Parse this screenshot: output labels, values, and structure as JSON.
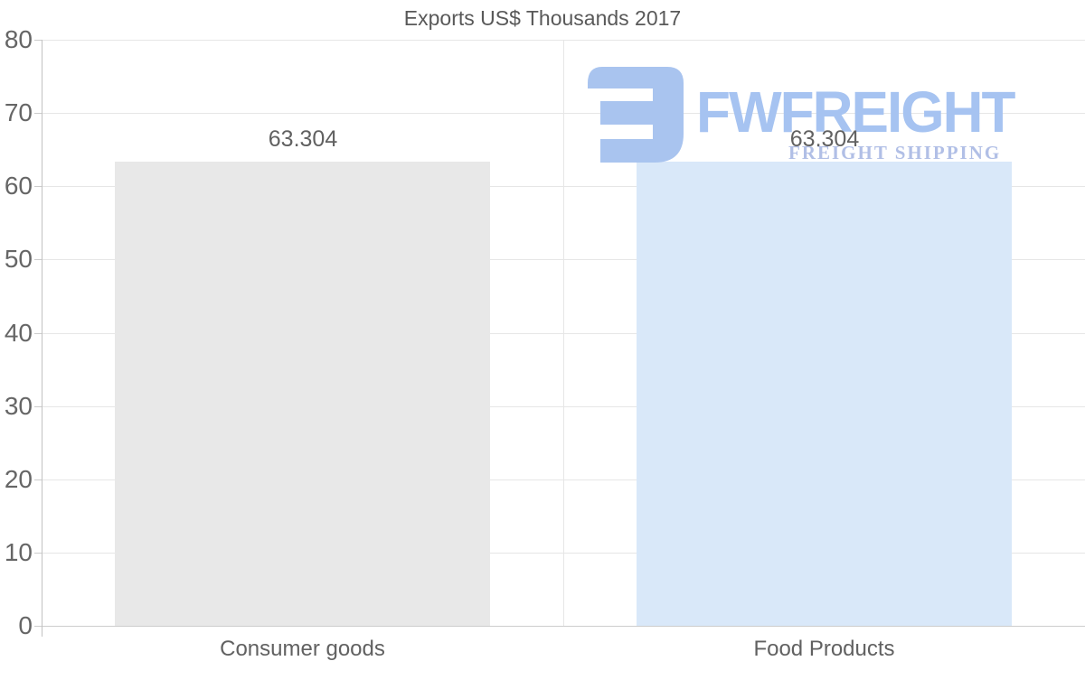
{
  "chart_data": {
    "type": "bar",
    "title": "Exports US$ Thousands 2017",
    "categories": [
      "Consumer goods",
      "Food Products"
    ],
    "values": [
      63.304,
      63.304
    ],
    "value_labels": [
      "63.304",
      "63.304"
    ],
    "ylim": [
      0,
      80
    ],
    "yticks": [
      0,
      10,
      20,
      30,
      40,
      50,
      60,
      70,
      80
    ],
    "grid": "horizontal gridlines on, one vertical category-divider gridline",
    "legend": "none",
    "xlabel": "",
    "ylabel": "",
    "bar_colors": [
      "#e8e8e8",
      "#d9e8f9"
    ]
  },
  "watermark": {
    "brand": "FWFREIGHT",
    "tagline": "FREIGHT SHIPPING",
    "icon": "fwfreight-logo-mark",
    "icon_color": "#a9c4ef",
    "brand_color": "#a6c3f1",
    "tagline_color": "#b1bfe6"
  },
  "colors": {
    "background": "#ffffff",
    "title_text": "#595959",
    "axis_text": "#666666",
    "label_text": "#616161",
    "gridline": "#e6e6e6",
    "baseline": "#cccccc",
    "axis_line": "#c2c2c2"
  }
}
